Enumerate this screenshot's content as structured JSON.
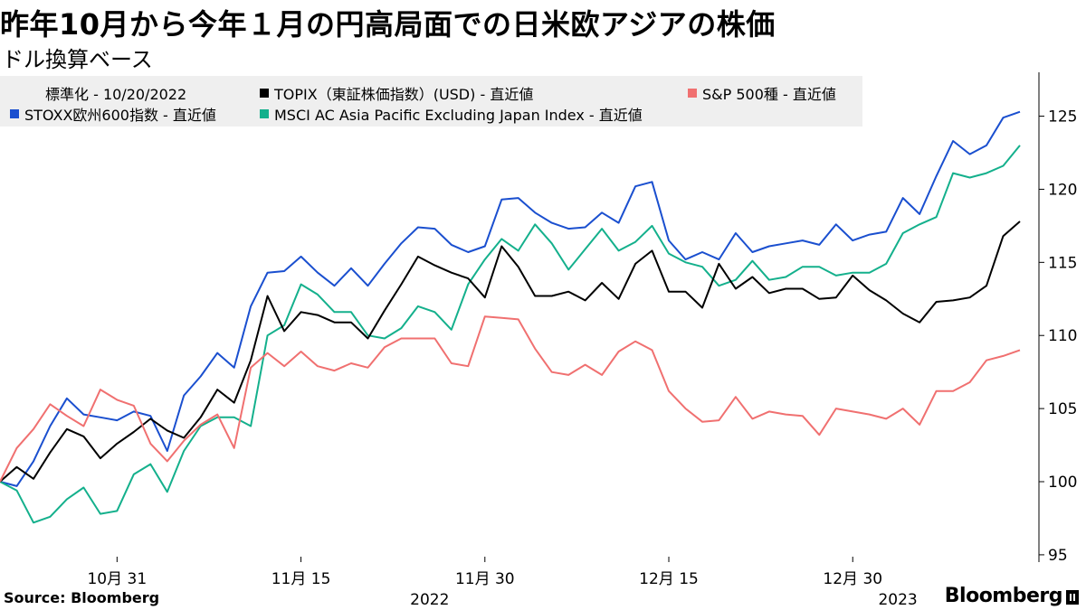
{
  "header": {
    "title": "昨年10月から今年１月の円高局面での日米欧アジアの株価",
    "subtitle": "ドル換算ベース"
  },
  "legend": {
    "note": "標準化 - 10/20/2022",
    "items": [
      {
        "label": "TOPIX（東証株価指数）(USD) - 直近値",
        "color": "#000000"
      },
      {
        "label": "S&P 500種 - 直近値",
        "color": "#f07070"
      },
      {
        "label": "STOXX欧州600指数 - 直近値",
        "color": "#1a4fcf"
      },
      {
        "label": "MSCI AC Asia Pacific Excluding Japan Index - 直近値",
        "color": "#14b08c"
      }
    ]
  },
  "footer": {
    "source": "Source: Bloomberg",
    "brand": "Bloomberg"
  },
  "chart_data": {
    "type": "line",
    "x": [
      "2022-10-20",
      "2022-10-21",
      "2022-10-24",
      "2022-10-25",
      "2022-10-26",
      "2022-10-27",
      "2022-10-28",
      "2022-10-31",
      "2022-11-01",
      "2022-11-02",
      "2022-11-03",
      "2022-11-04",
      "2022-11-07",
      "2022-11-08",
      "2022-11-09",
      "2022-11-10",
      "2022-11-11",
      "2022-11-14",
      "2022-11-15",
      "2022-11-16",
      "2022-11-17",
      "2022-11-18",
      "2022-11-21",
      "2022-11-22",
      "2022-11-23",
      "2022-11-24",
      "2022-11-25",
      "2022-11-28",
      "2022-11-29",
      "2022-11-30",
      "2022-12-01",
      "2022-12-02",
      "2022-12-05",
      "2022-12-06",
      "2022-12-07",
      "2022-12-08",
      "2022-12-09",
      "2022-12-12",
      "2022-12-13",
      "2022-12-14",
      "2022-12-15",
      "2022-12-16",
      "2022-12-19",
      "2022-12-20",
      "2022-12-21",
      "2022-12-22",
      "2022-12-23",
      "2022-12-26",
      "2022-12-27",
      "2022-12-28",
      "2022-12-29",
      "2022-12-30",
      "2023-01-02",
      "2023-01-03",
      "2023-01-04",
      "2023-01-05",
      "2023-01-06",
      "2023-01-09",
      "2023-01-10",
      "2023-01-11",
      "2023-01-12",
      "2023-01-13"
    ],
    "x_tick_labels": [
      {
        "date": "2022-10-31",
        "label": "10月 31"
      },
      {
        "date": "2022-11-15",
        "label": "11月 15"
      },
      {
        "date": "2022-11-30",
        "label": "11月 30"
      },
      {
        "date": "2022-12-15",
        "label": "12月 15"
      },
      {
        "date": "2022-12-30",
        "label": "12月 30"
      }
    ],
    "year_labels": [
      {
        "date": "2022-11-30",
        "label": "2022"
      },
      {
        "date": "2023-01-09",
        "label": "2023"
      }
    ],
    "y_ticks": [
      95,
      100,
      105,
      110,
      115,
      120,
      125
    ],
    "ylim": [
      94.5,
      128
    ],
    "y_axis_side": "right",
    "grid": false,
    "legend_position": "top",
    "series": [
      {
        "name": "STOXX欧州600指数 - 直近値",
        "color": "#1a4fcf",
        "values": [
          100.0,
          99.7,
          101.4,
          103.8,
          105.7,
          104.6,
          104.4,
          104.2,
          104.8,
          104.5,
          102.1,
          105.9,
          107.2,
          108.8,
          107.8,
          112.0,
          114.3,
          114.4,
          115.4,
          114.3,
          113.4,
          114.6,
          113.4,
          114.9,
          116.3,
          117.4,
          117.3,
          116.2,
          115.7,
          116.1,
          119.3,
          119.4,
          118.4,
          117.7,
          117.3,
          117.4,
          118.4,
          117.7,
          120.2,
          120.5,
          116.5,
          115.2,
          115.7,
          115.2,
          117.0,
          115.7,
          116.1,
          116.3,
          116.5,
          116.2,
          117.6,
          116.5,
          116.9,
          117.1,
          119.4,
          118.3,
          120.9,
          123.3,
          122.4,
          123.0,
          124.9,
          125.3
        ]
      },
      {
        "name": "MSCI AC Asia Pacific Excluding Japan Index - 直近値",
        "color": "#14b08c",
        "values": [
          100.0,
          99.4,
          97.2,
          97.6,
          98.8,
          99.6,
          97.8,
          98.0,
          100.5,
          101.2,
          99.3,
          102.1,
          103.8,
          104.4,
          104.4,
          103.8,
          110.0,
          110.7,
          113.5,
          112.8,
          111.6,
          111.6,
          110.0,
          109.8,
          110.5,
          112.0,
          111.6,
          110.4,
          113.5,
          115.2,
          116.6,
          115.8,
          117.6,
          116.3,
          114.5,
          115.9,
          117.3,
          115.8,
          116.4,
          117.5,
          115.6,
          115.0,
          114.7,
          113.4,
          113.8,
          115.1,
          113.8,
          114.0,
          114.7,
          114.7,
          114.1,
          114.3,
          114.3,
          114.9,
          117.0,
          117.6,
          118.1,
          121.1,
          120.8,
          121.1,
          121.6,
          123.0
        ]
      },
      {
        "name": "TOPIX（東証株価指数）(USD) - 直近値",
        "color": "#000000",
        "values": [
          100.0,
          101.0,
          100.2,
          102.0,
          103.6,
          103.1,
          101.6,
          102.6,
          103.4,
          104.3,
          103.5,
          103.0,
          104.4,
          106.3,
          105.4,
          108.3,
          112.7,
          110.3,
          111.6,
          111.4,
          110.9,
          110.9,
          109.8,
          111.7,
          113.5,
          115.4,
          114.8,
          114.3,
          113.9,
          112.6,
          116.1,
          114.7,
          112.7,
          112.7,
          113.0,
          112.4,
          113.6,
          112.5,
          114.9,
          115.8,
          113.0,
          113.0,
          111.9,
          114.9,
          113.2,
          114.0,
          112.9,
          113.2,
          113.2,
          112.5,
          112.6,
          114.1,
          113.1,
          112.4,
          111.5,
          110.9,
          112.3,
          112.4,
          112.6,
          113.4,
          116.8,
          117.8
        ]
      },
      {
        "name": "S&P 500種 - 直近値",
        "color": "#f07070",
        "values": [
          100.0,
          102.3,
          103.6,
          105.3,
          104.5,
          103.8,
          106.3,
          105.6,
          105.2,
          102.6,
          101.4,
          102.8,
          103.9,
          104.6,
          102.3,
          107.8,
          108.8,
          107.9,
          108.9,
          107.9,
          107.6,
          108.1,
          107.8,
          109.2,
          109.8,
          109.8,
          109.8,
          108.1,
          107.9,
          111.3,
          111.2,
          111.1,
          109.1,
          107.5,
          107.3,
          108.0,
          107.3,
          108.9,
          109.6,
          109.0,
          106.2,
          105.0,
          104.1,
          104.2,
          105.8,
          104.3,
          104.8,
          104.6,
          104.5,
          103.2,
          105.0,
          104.8,
          104.6,
          104.3,
          105.0,
          103.9,
          106.2,
          106.2,
          106.8,
          108.3,
          108.6,
          109.0
        ]
      }
    ]
  }
}
